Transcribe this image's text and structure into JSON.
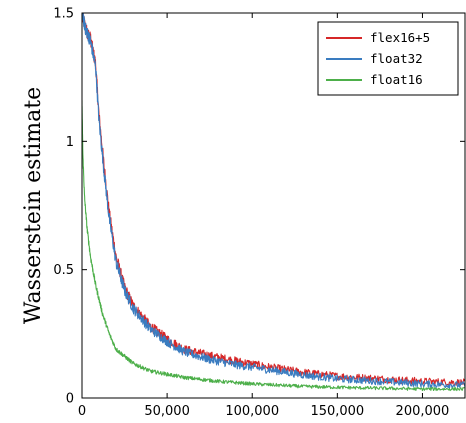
{
  "chart_data": {
    "type": "line",
    "ylabel": "Wasserstein estimate",
    "xlabel": "",
    "xlim": [
      0,
      225000
    ],
    "ylim": [
      0,
      1.5
    ],
    "x_ticks": [
      0,
      50000,
      100000,
      150000,
      200000
    ],
    "x_tick_labels": [
      "0",
      "50,000",
      "100,000",
      "150,000",
      "200,000"
    ],
    "y_ticks": [
      0,
      0.5,
      1,
      1.5
    ],
    "y_tick_labels": [
      "0",
      "0.5",
      "1",
      "1.5"
    ],
    "grid": false,
    "legend_position": "top-right",
    "series": [
      {
        "name": "flex16+5",
        "color": "#d62728",
        "noise": 0.025,
        "x": [
          0,
          2000,
          5000,
          8000,
          10000,
          13000,
          16000,
          20000,
          25000,
          30000,
          40000,
          50000,
          60000,
          75000,
          90000,
          110000,
          130000,
          150000,
          175000,
          200000,
          225000
        ],
        "y": [
          1.5,
          1.44,
          1.4,
          1.3,
          1.1,
          0.9,
          0.72,
          0.55,
          0.43,
          0.36,
          0.28,
          0.23,
          0.19,
          0.165,
          0.145,
          0.12,
          0.1,
          0.085,
          0.075,
          0.065,
          0.06
        ]
      },
      {
        "name": "float32",
        "color": "#3a7cc0",
        "noise": 0.025,
        "x": [
          0,
          2000,
          5000,
          8000,
          10000,
          13000,
          16000,
          20000,
          25000,
          30000,
          40000,
          50000,
          60000,
          75000,
          90000,
          110000,
          130000,
          150000,
          175000,
          200000,
          225000
        ],
        "y": [
          1.5,
          1.44,
          1.39,
          1.29,
          1.08,
          0.88,
          0.7,
          0.53,
          0.42,
          0.35,
          0.27,
          0.22,
          0.18,
          0.15,
          0.13,
          0.11,
          0.09,
          0.075,
          0.065,
          0.055,
          0.05
        ]
      },
      {
        "name": "float16",
        "color": "#4daf4a",
        "noise": 0.012,
        "x": [
          0,
          500,
          1500,
          3000,
          5000,
          8000,
          12000,
          16000,
          20000,
          30000,
          40000,
          60000,
          80000,
          100000,
          130000,
          160000,
          200000,
          225000
        ],
        "y": [
          1.15,
          0.95,
          0.78,
          0.66,
          0.55,
          0.44,
          0.33,
          0.25,
          0.19,
          0.135,
          0.105,
          0.08,
          0.065,
          0.055,
          0.045,
          0.04,
          0.035,
          0.035
        ]
      }
    ]
  }
}
